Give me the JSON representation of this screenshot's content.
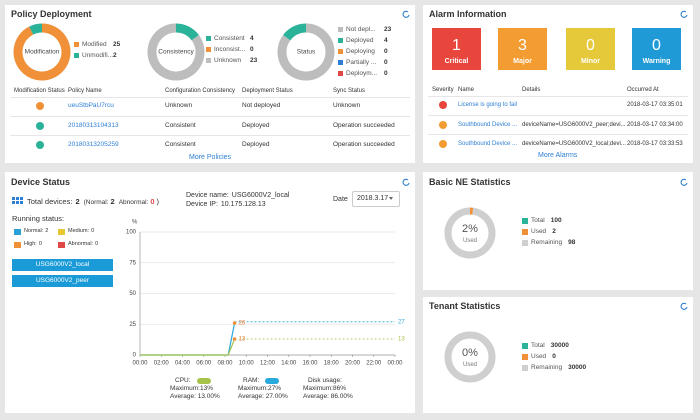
{
  "policy_deployment": {
    "title": "Policy Deployment",
    "donuts": [
      {
        "center": "Modification",
        "items": [
          {
            "label": "Modified",
            "value": 25,
            "color": "#f0913a"
          },
          {
            "label": "Unmodifi...",
            "value": 2,
            "color": "#2bb39a"
          }
        ]
      },
      {
        "center": "Consistency",
        "items": [
          {
            "label": "Consistent",
            "value": 4,
            "color": "#2bb39a"
          },
          {
            "label": "Inconsist...",
            "value": 0,
            "color": "#f0913a"
          },
          {
            "label": "Unknown",
            "value": 23,
            "color": "#bdbdbd"
          }
        ]
      },
      {
        "center": "Status",
        "items": [
          {
            "label": "Not depl...",
            "value": 23,
            "color": "#bdbdbd"
          },
          {
            "label": "Deployed",
            "value": 4,
            "color": "#2bb39a"
          },
          {
            "label": "Deploying",
            "value": 0,
            "color": "#f0913a"
          },
          {
            "label": "Partially ...",
            "value": 0,
            "color": "#2d7fd3"
          },
          {
            "label": "Deploym...",
            "value": 0,
            "color": "#e04848"
          }
        ]
      }
    ],
    "table": {
      "columns": [
        "Modification Status",
        "Policy Name",
        "Configuration Consistency",
        "Deployment Status",
        "Sync Status"
      ],
      "rows": [
        {
          "status_color": "#f0913a",
          "policy_name": "ueuStbPaU7rcu",
          "configuration_consistency": "Unknown",
          "deployment_status": "Not deployed",
          "sync_status": "Unknown"
        },
        {
          "status_color": "#2bb39a",
          "policy_name": "20180313104313",
          "configuration_consistency": "Consistent",
          "deployment_status": "Deployed",
          "sync_status": "Operation succeeded"
        },
        {
          "status_color": "#2bb39a",
          "policy_name": "20180313205259",
          "configuration_consistency": "Consistent",
          "deployment_status": "Deployed",
          "sync_status": "Operation succeeded"
        }
      ]
    },
    "more": "More Policies"
  },
  "alarm_information": {
    "title": "Alarm Information",
    "tiles": [
      {
        "count": 1,
        "label": "Critical",
        "color": "#e8453c"
      },
      {
        "count": 3,
        "label": "Major",
        "color": "#f39c32"
      },
      {
        "count": 0,
        "label": "Minor",
        "color": "#e6c93a"
      },
      {
        "count": 0,
        "label": "Warning",
        "color": "#1f9ad6"
      }
    ],
    "table": {
      "columns": [
        "Severity",
        "Name",
        "Details",
        "Occurred At"
      ],
      "rows": [
        {
          "severity_color": "#e8453c",
          "name": "License is going to fail",
          "occurred_at": "2018-03-17 03:35:01"
        },
        {
          "severity_color": "#f39c32",
          "name": "Southbound Device ...",
          "details": "deviceName=USG6000V2_peer;devi...",
          "occurred_at": "2018-03-17 03:34:00"
        },
        {
          "severity_color": "#f39c32",
          "name": "Southbound Device ...",
          "details": "deviceName=USG6000V2_local;devi...",
          "occurred_at": "2018-03-17 03:33:53"
        }
      ]
    },
    "more": "More Alarms"
  },
  "device_status": {
    "title": "Device Status",
    "total_label": "Total devices:",
    "total": 2,
    "normal_label": "(Normal:",
    "normal": 2,
    "abnormal_label": "Abnormal:",
    "abnormal": 0,
    "close": ")",
    "device_name_label": "Device name:",
    "device_name": "USG6000V2_local",
    "device_ip_label": "Device IP:",
    "device_ip": "10.175.128.13",
    "date_label": "Date",
    "date": "2018.3.17",
    "running_status": "Running status:",
    "status_legend": [
      {
        "label": "Normal:",
        "value": 2,
        "color": "#2aa0d8"
      },
      {
        "label": "Medium:",
        "value": 0,
        "color": "#e6c832"
      },
      {
        "label": "High:",
        "value": 0,
        "color": "#f0913a"
      },
      {
        "label": "Abnormal:",
        "value": 0,
        "color": "#e04848"
      }
    ],
    "devices": [
      "USG6000V2_local",
      "USG6000V2_peer"
    ],
    "chart": {
      "type": "line",
      "y_unit": "%",
      "xlim": [
        0,
        24
      ],
      "ylim": [
        0,
        100
      ],
      "yticks": [
        0,
        25,
        50,
        75,
        100
      ],
      "xticks": [
        {
          "value": 0,
          "label": "00:00"
        },
        {
          "value": 2,
          "label": "02:00"
        },
        {
          "value": 4,
          "label": "04:00"
        },
        {
          "value": 6,
          "label": "06:00"
        },
        {
          "value": 8,
          "label": "08:00"
        },
        {
          "value": 10,
          "label": "10:00"
        },
        {
          "value": 12,
          "label": "12:00"
        },
        {
          "value": 14,
          "label": "14:00"
        },
        {
          "value": 16,
          "label": "16:00"
        },
        {
          "value": 18,
          "label": "18:00"
        },
        {
          "value": 20,
          "label": "20:00"
        },
        {
          "value": 22,
          "label": "22:00"
        },
        {
          "value": 24,
          "label": "00:00"
        }
      ],
      "series": [
        {
          "color": "#29a8dc",
          "x": [
            0,
            8.3,
            8.9
          ],
          "values": [
            0,
            0,
            26
          ]
        },
        {
          "color": "#a5c34a",
          "x": [
            0,
            8.3,
            8.9
          ],
          "values": [
            0,
            0,
            13
          ]
        }
      ],
      "reference_lines": [
        {
          "value": 27,
          "color": "#29a8dc"
        },
        {
          "value": 13,
          "color": "#a5c34a"
        }
      ],
      "summary": [
        {
          "label": "CPU:",
          "color": "#a5c34a",
          "maximum": "Maximum:13%",
          "average": "Average: 13.00%"
        },
        {
          "label": "RAM:",
          "color": "#29a8dc",
          "maximum": "Maximum:27%",
          "average": "Average: 27.00%"
        },
        {
          "label": "Disk usage:",
          "maximum": "Maximum:86%",
          "average": "Average: 86.00%"
        }
      ]
    }
  },
  "basic_ne_statistics": {
    "title": "Basic NE Statistics",
    "center_value": "2%",
    "center_label": "Used",
    "legend": [
      {
        "label": "Total",
        "value": 100,
        "color": "#2bb39a"
      },
      {
        "label": "Used",
        "value": 2,
        "color": "#f0913a"
      },
      {
        "label": "Remaining",
        "value": 98,
        "color": "#cfcfcf"
      }
    ]
  },
  "tenant_statistics": {
    "title": "Tenant Statistics",
    "center_value": "0%",
    "center_label": "Used",
    "legend": [
      {
        "label": "Total",
        "value": 30000,
        "color": "#2bb39a"
      },
      {
        "label": "Used",
        "value": 0,
        "color": "#f0913a"
      },
      {
        "label": "Remaining",
        "value": 30000,
        "color": "#cfcfcf"
      }
    ]
  }
}
